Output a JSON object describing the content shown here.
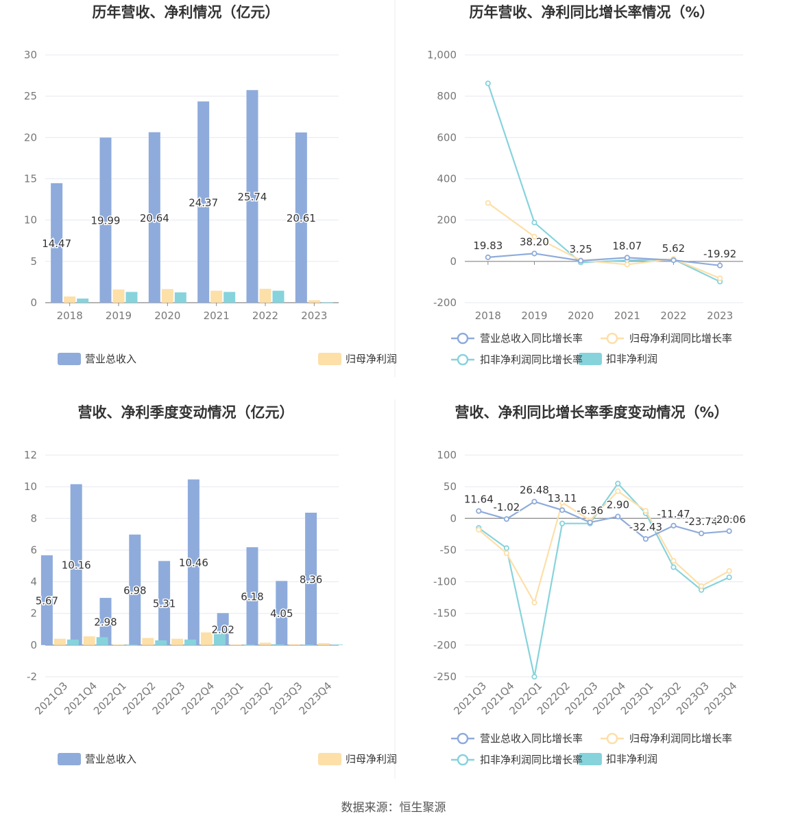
{
  "footer": {
    "source": "数据来源：恒生聚源"
  },
  "colors": {
    "revenue": "#8eabdb",
    "net_profit": "#fddfa8",
    "deducted_profit": "#86d3dc",
    "grid": "#e6e8f0",
    "axis": "#888888"
  },
  "chart_data": [
    {
      "id": "annual-revenue-profit",
      "type": "bar",
      "title": "历年营收、净利情况（亿元）",
      "categories": [
        "2018",
        "2019",
        "2020",
        "2021",
        "2022",
        "2023"
      ],
      "ylim": [
        0,
        30
      ],
      "yticks": [
        0,
        5,
        10,
        15,
        20,
        25,
        30
      ],
      "series": [
        {
          "name": "营业总收入",
          "color": "#8eabdb",
          "values": [
            14.47,
            19.99,
            20.64,
            24.37,
            25.74,
            20.61
          ],
          "labels": [
            "14.47",
            "19.99",
            "20.64",
            "24.37",
            "25.74",
            "20.61"
          ]
        },
        {
          "name": "归母净利润",
          "color": "#fddfa8",
          "values": [
            0.75,
            1.6,
            1.65,
            1.45,
            1.68,
            0.3
          ]
        },
        {
          "name": "扣非净利润",
          "color": "#86d3dc",
          "values": [
            0.5,
            1.3,
            1.25,
            1.3,
            1.45,
            0.05
          ]
        }
      ],
      "legend": [
        "营业总收入",
        "归母净利润",
        "扣非净利润"
      ]
    },
    {
      "id": "annual-growth",
      "type": "line",
      "title": "历年营收、净利同比增长率情况（%）",
      "categories": [
        "2018",
        "2019",
        "2020",
        "2021",
        "2022",
        "2023"
      ],
      "ylim": [
        -200,
        1000
      ],
      "yticks": [
        -200,
        0,
        200,
        400,
        600,
        800,
        1000
      ],
      "ytick_labels": [
        "-200",
        "0",
        "200",
        "400",
        "600",
        "800",
        "1,000"
      ],
      "series": [
        {
          "name": "营业总收入同比增长率",
          "color": "#8eabdb",
          "values": [
            19.83,
            38.2,
            3.25,
            18.07,
            5.62,
            -19.92
          ],
          "labels": [
            "19.83",
            "38.20",
            "3.25",
            "18.07",
            "5.62",
            "-19.92"
          ]
        },
        {
          "name": "归母净利润同比增长率",
          "color": "#fddfa8",
          "values": [
            283,
            120,
            5,
            -15,
            12,
            -82
          ]
        },
        {
          "name": "扣非净利润同比增长率",
          "color": "#86d3dc",
          "values": [
            862,
            188,
            -5,
            5,
            10,
            -98
          ]
        }
      ],
      "legend": [
        "营业总收入同比增长率",
        "归母净利润同比增长率",
        "扣非净利润同比增长率"
      ]
    },
    {
      "id": "quarterly-revenue-profit",
      "type": "bar",
      "title": "营收、净利季度变动情况（亿元）",
      "categories": [
        "2021Q3",
        "2021Q4",
        "2022Q1",
        "2022Q2",
        "2022Q3",
        "2022Q4",
        "2023Q1",
        "2023Q2",
        "2023Q3",
        "2023Q4"
      ],
      "ylim": [
        -2,
        12
      ],
      "yticks": [
        -2,
        0,
        2,
        4,
        6,
        8,
        10,
        12
      ],
      "series": [
        {
          "name": "营业总收入",
          "color": "#8eabdb",
          "values": [
            5.67,
            10.16,
            2.98,
            6.98,
            5.31,
            10.46,
            2.02,
            6.18,
            4.05,
            8.36
          ],
          "labels": [
            "5.67",
            "10.16",
            "2.98",
            "6.98",
            "5.31",
            "10.46",
            "2.02",
            "6.18",
            "4.05",
            "8.36"
          ]
        },
        {
          "name": "归母净利润",
          "color": "#fddfa8",
          "values": [
            0.4,
            0.55,
            0.03,
            0.45,
            0.4,
            0.8,
            0.03,
            0.15,
            0.05,
            0.12
          ]
        },
        {
          "name": "扣非净利润",
          "color": "#86d3dc",
          "values": [
            0.35,
            0.5,
            0.02,
            0.3,
            0.35,
            0.78,
            0.02,
            0.05,
            0.03,
            0.03
          ]
        }
      ],
      "legend": [
        "营业总收入",
        "归母净利润",
        "扣非净利润"
      ]
    },
    {
      "id": "quarterly-growth",
      "type": "line",
      "title": "营收、净利同比增长率季度变动情况（%）",
      "categories": [
        "2021Q3",
        "2021Q4",
        "2022Q1",
        "2022Q2",
        "2022Q3",
        "2022Q4",
        "2023Q1",
        "2023Q2",
        "2023Q3",
        "2023Q4"
      ],
      "ylim": [
        -250,
        100
      ],
      "yticks": [
        -250,
        -200,
        -150,
        -100,
        -50,
        0,
        50,
        100
      ],
      "series": [
        {
          "name": "营业总收入同比增长率",
          "color": "#8eabdb",
          "values": [
            11.64,
            -1.02,
            26.48,
            13.11,
            -6.36,
            2.9,
            -32.43,
            -11.47,
            -23.74,
            -20.06
          ],
          "labels": [
            "11.64",
            "-1.02",
            "26.48",
            "13.11",
            "-6.36",
            "2.90",
            "-32.43",
            "-11.47",
            "-23.74",
            "-20.06"
          ]
        },
        {
          "name": "归母净利润同比增长率",
          "color": "#fddfa8",
          "values": [
            -18,
            -55,
            -133,
            25,
            -3,
            43,
            12,
            -67,
            -107,
            -83
          ]
        },
        {
          "name": "扣非净利润同比增长率",
          "color": "#86d3dc",
          "values": [
            -15,
            -47,
            -250,
            -8,
            -8,
            55,
            8,
            -77,
            -113,
            -93
          ]
        }
      ],
      "legend": [
        "营业总收入同比增长率",
        "归母净利润同比增长率",
        "扣非净利润同比增长率"
      ]
    }
  ]
}
